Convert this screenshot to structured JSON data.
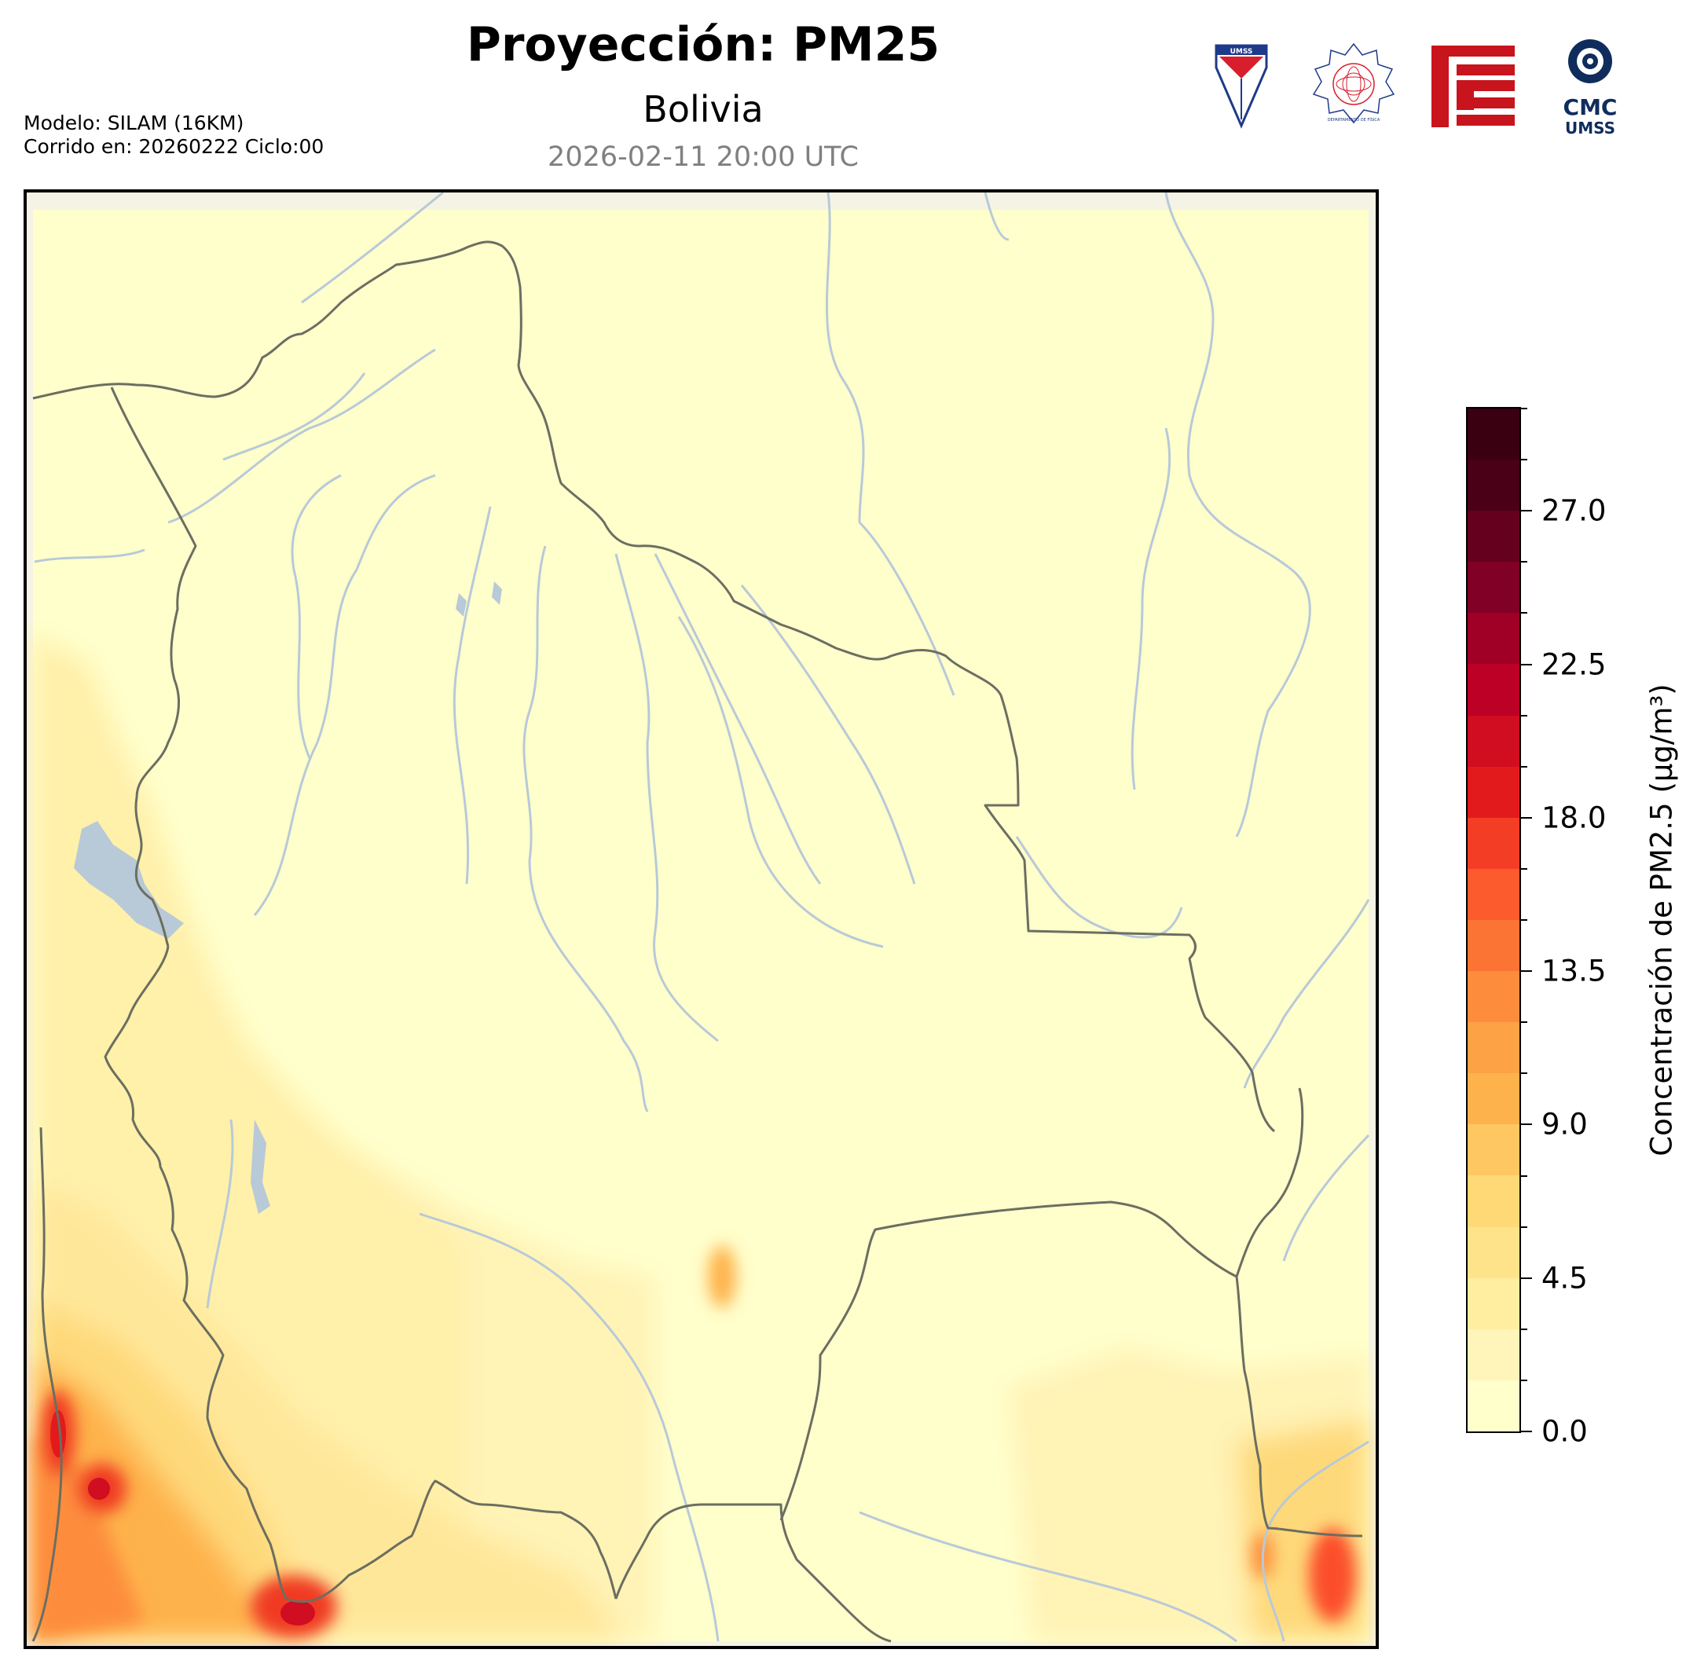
{
  "header": {
    "title": "Proyección: PM25",
    "subtitle": "Bolivia",
    "datetime": "2026-02-11 20:00 UTC",
    "model_line": "Modelo: SILAM (16KM)",
    "run_line": "Corrido en: 20260222 Ciclo:00"
  },
  "logos": {
    "umss_text": "UMSS",
    "fisica_text": "DEPARTAMENTO DE FÍSICA",
    "cmc_text": "CMC",
    "cmc_sub": "UMSS"
  },
  "map": {
    "region": "Bolivia",
    "background_color": "#ffffcc",
    "border_color": "#666666",
    "river_color": "#b8c9d8"
  },
  "colorbar": {
    "label": "Concentración de PM2.5 (µg/m³)",
    "min": 0.0,
    "max": 30.0,
    "ticks": [
      "0.0",
      "4.5",
      "9.0",
      "13.5",
      "18.0",
      "22.5",
      "27.0"
    ],
    "tick_values": [
      0.0,
      4.5,
      9.0,
      13.5,
      18.0,
      22.5,
      27.0
    ],
    "colors": [
      "#ffffcc",
      "#fff5bb",
      "#ffeda0",
      "#fee38b",
      "#fed976",
      "#fec762",
      "#feb24c",
      "#fea246",
      "#fd8d3c",
      "#fc7434",
      "#fc5b2e",
      "#f43d25",
      "#e31a1c",
      "#d00d21",
      "#bd0026",
      "#a00026",
      "#800026",
      "#65001f",
      "#4a0016",
      "#3a0012"
    ]
  }
}
